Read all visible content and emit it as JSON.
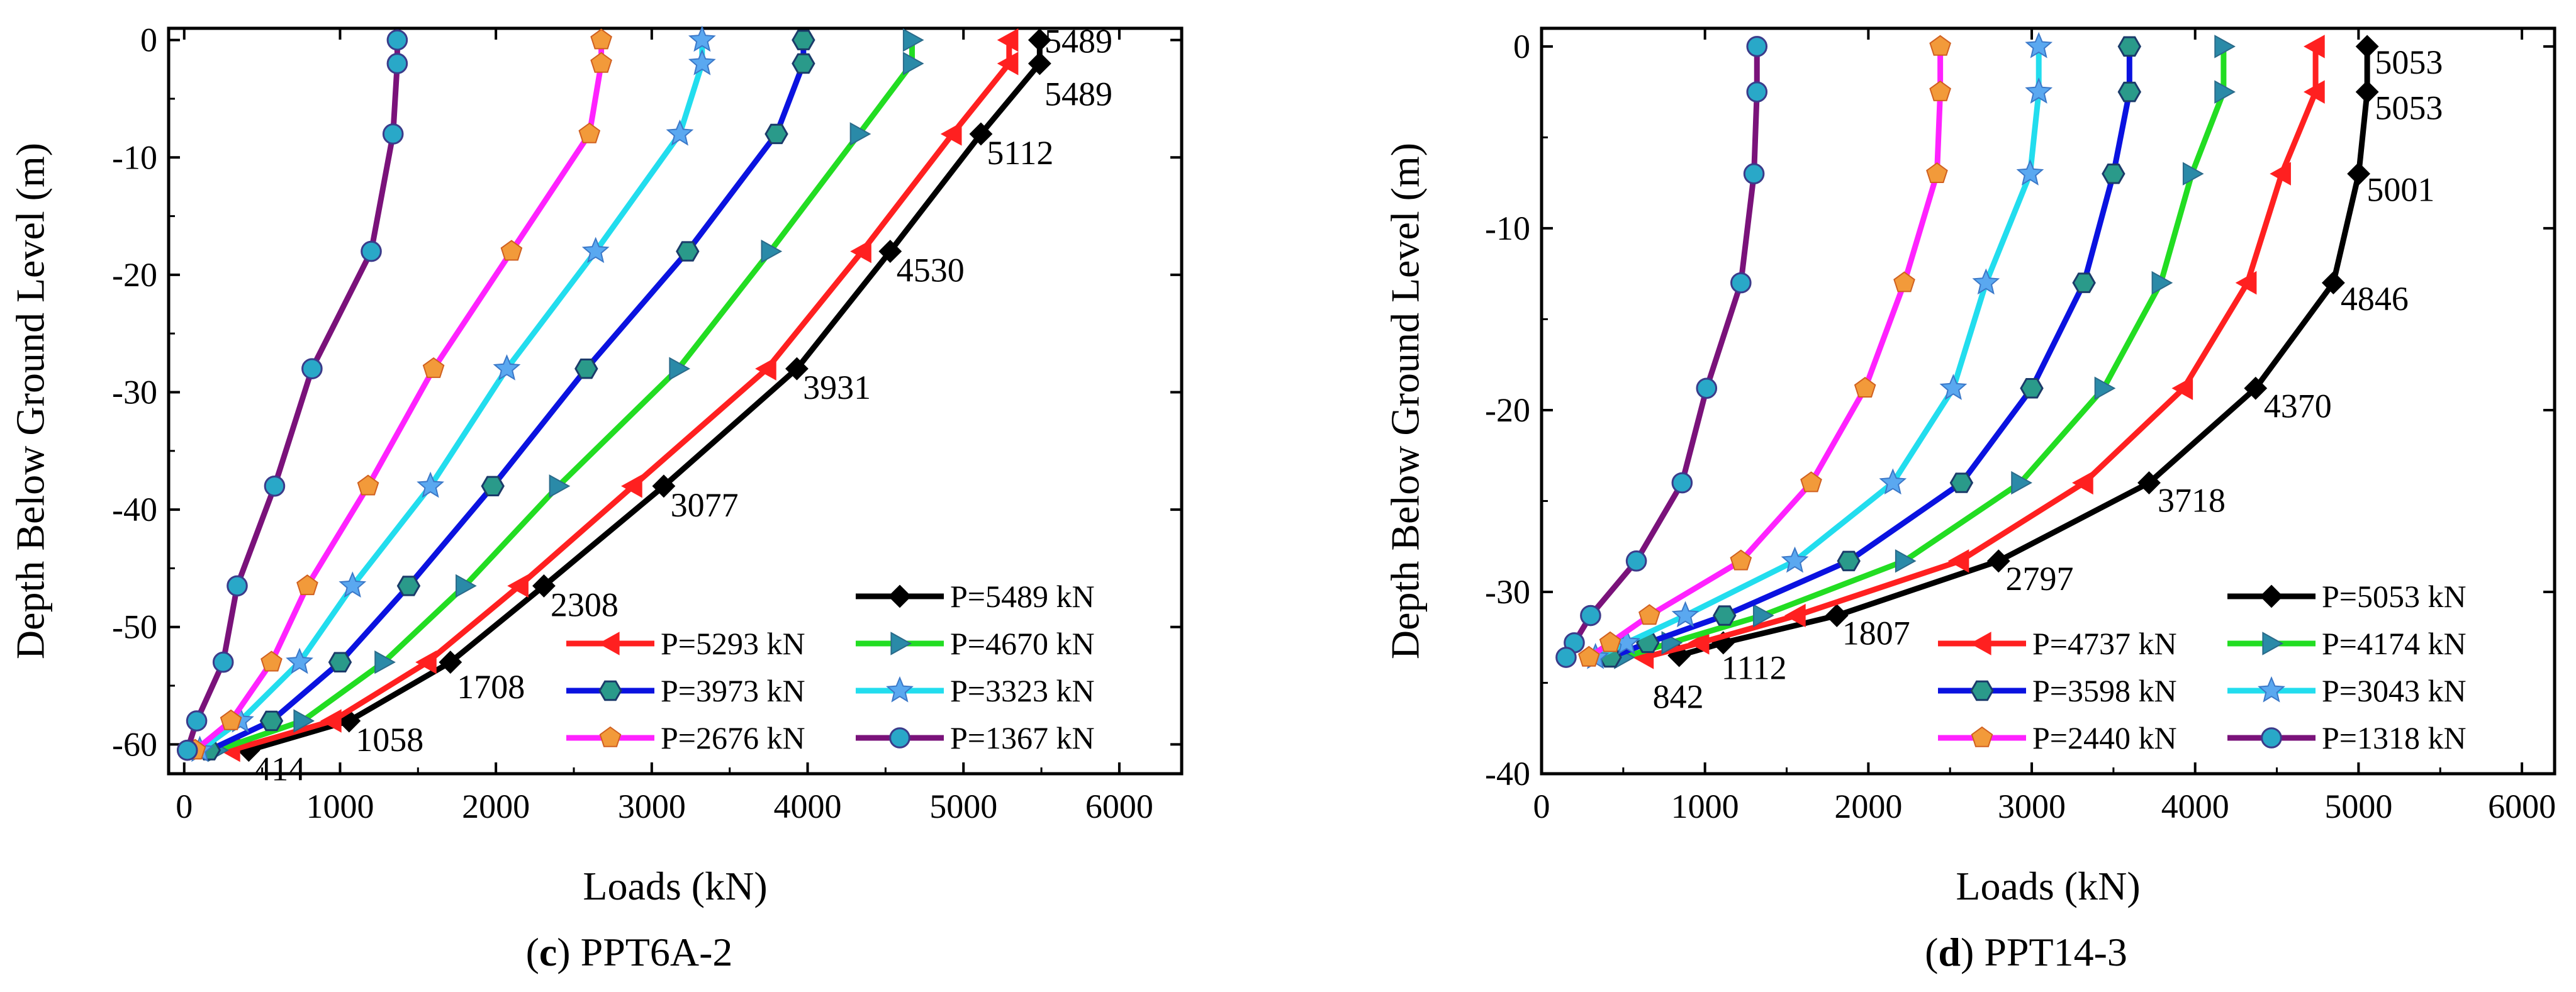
{
  "chart_data": [
    {
      "type": "line",
      "caption_letter": "c",
      "caption_text": "PPT6A-2",
      "xlabel": "Loads (kN)",
      "ylabel": "Depth Below Ground Level (m)",
      "xlim": [
        -100,
        6400
      ],
      "ylim": [
        -62.5,
        1
      ],
      "xticks": [
        0,
        1000,
        2000,
        3000,
        4000,
        5000,
        6000
      ],
      "yticks": [
        0,
        -10,
        -20,
        -30,
        -40,
        -50,
        -60
      ],
      "grid": false,
      "legend_position": "bottom-right",
      "series": [
        {
          "name": "P=5489 kN",
          "color": "#000000",
          "marker": "diamond",
          "points": [
            [
              5489,
              0
            ],
            [
              5489,
              -2
            ],
            [
              5112,
              -8
            ],
            [
              4530,
              -18
            ],
            [
              3931,
              -28
            ],
            [
              3077,
              -38
            ],
            [
              2308,
              -46.5
            ],
            [
              1708,
              -53
            ],
            [
              1058,
              -58
            ],
            [
              414,
              -60.5
            ]
          ]
        },
        {
          "name": "P=5293 kN",
          "color": "#ff2020",
          "marker": "triangle-left",
          "points": [
            [
              5293,
              0
            ],
            [
              5293,
              -2
            ],
            [
              4930,
              -8
            ],
            [
              4350,
              -18
            ],
            [
              3740,
              -28
            ],
            [
              2880,
              -38
            ],
            [
              2150,
              -46.5
            ],
            [
              1560,
              -53
            ],
            [
              950,
              -58
            ],
            [
              300,
              -60.5
            ]
          ]
        },
        {
          "name": "P=4670 kN",
          "color": "#22dd22",
          "marker": "triangle-right",
          "points": [
            [
              4670,
              0
            ],
            [
              4670,
              -2
            ],
            [
              4330,
              -8
            ],
            [
              3760,
              -18
            ],
            [
              3170,
              -28
            ],
            [
              2400,
              -38
            ],
            [
              1800,
              -46.5
            ],
            [
              1280,
              -53
            ],
            [
              760,
              -58
            ],
            [
              210,
              -60.5
            ]
          ]
        },
        {
          "name": "P=3973 kN",
          "color": "#0a12e0",
          "marker": "hexagon",
          "points": [
            [
              3973,
              0
            ],
            [
              3973,
              -2
            ],
            [
              3800,
              -8
            ],
            [
              3230,
              -18
            ],
            [
              2580,
              -28
            ],
            [
              1980,
              -38
            ],
            [
              1440,
              -46.5
            ],
            [
              1000,
              -53
            ],
            [
              560,
              -58
            ],
            [
              160,
              -60.5
            ]
          ]
        },
        {
          "name": "P=3323 kN",
          "color": "#22ddee",
          "marker": "star",
          "points": [
            [
              3323,
              0
            ],
            [
              3323,
              -2
            ],
            [
              3180,
              -8
            ],
            [
              2640,
              -18
            ],
            [
              2070,
              -28
            ],
            [
              1580,
              -38
            ],
            [
              1080,
              -46.5
            ],
            [
              740,
              -53
            ],
            [
              360,
              -58
            ],
            [
              100,
              -60.5
            ]
          ]
        },
        {
          "name": "P=2676 kN",
          "color": "#ff22ff",
          "marker": "pentagon",
          "points": [
            [
              2676,
              0
            ],
            [
              2676,
              -2
            ],
            [
              2600,
              -8
            ],
            [
              2100,
              -18
            ],
            [
              1600,
              -28
            ],
            [
              1180,
              -38
            ],
            [
              790,
              -46.5
            ],
            [
              560,
              -53
            ],
            [
              300,
              -58
            ],
            [
              70,
              -60.5
            ]
          ]
        },
        {
          "name": "P=1367 kN",
          "color": "#7a127a",
          "marker": "circle",
          "points": [
            [
              1367,
              0
            ],
            [
              1367,
              -2
            ],
            [
              1340,
              -8
            ],
            [
              1200,
              -18
            ],
            [
              820,
              -28
            ],
            [
              580,
              -38
            ],
            [
              340,
              -46.5
            ],
            [
              250,
              -53
            ],
            [
              80,
              -58
            ],
            [
              20,
              -60.5
            ]
          ]
        }
      ],
      "annotations": [
        {
          "text": "5489",
          "x": 5520,
          "y": 0
        },
        {
          "text": "5489",
          "x": 5520,
          "y": -4.5
        },
        {
          "text": "5112",
          "x": 5150,
          "y": -9.5
        },
        {
          "text": "4530",
          "x": 4570,
          "y": -19.5
        },
        {
          "text": "3931",
          "x": 3970,
          "y": -29.5
        },
        {
          "text": "3077",
          "x": 3120,
          "y": -39.5
        },
        {
          "text": "2308",
          "x": 2350,
          "y": -48
        },
        {
          "text": "1708",
          "x": 1750,
          "y": -55
        },
        {
          "text": "1058",
          "x": 1100,
          "y": -59.5
        },
        {
          "text": "414",
          "x": 450,
          "y": -62
        }
      ]
    },
    {
      "type": "line",
      "caption_letter": "d",
      "caption_text": "PPT14-3",
      "xlabel": "Loads (kN)",
      "ylabel": "Depth Below Ground Level (m)",
      "xlim": [
        0,
        6200
      ],
      "ylim": [
        -40,
        1
      ],
      "xticks": [
        0,
        1000,
        2000,
        3000,
        4000,
        5000,
        6000
      ],
      "yticks": [
        0,
        -10,
        -20,
        -30,
        -40
      ],
      "grid": false,
      "legend_position": "bottom-right",
      "series": [
        {
          "name": "P=5053 kN",
          "color": "#000000",
          "marker": "diamond",
          "points": [
            [
              5053,
              0
            ],
            [
              5053,
              -2.5
            ],
            [
              5001,
              -7
            ],
            [
              4846,
              -13
            ],
            [
              4370,
              -18.8
            ],
            [
              3718,
              -24
            ],
            [
              2797,
              -28.3
            ],
            [
              1807,
              -31.3
            ],
            [
              1112,
              -32.8
            ],
            [
              842,
              -33.5
            ]
          ]
        },
        {
          "name": "P=4737 kN",
          "color": "#ff2020",
          "marker": "triangle-left",
          "points": [
            [
              4737,
              0
            ],
            [
              4737,
              -2.5
            ],
            [
              4530,
              -7
            ],
            [
              4320,
              -13
            ],
            [
              3930,
              -18.8
            ],
            [
              3320,
              -24
            ],
            [
              2560,
              -28.3
            ],
            [
              1560,
              -31.3
            ],
            [
              970,
              -32.8
            ],
            [
              630,
              -33.6
            ]
          ]
        },
        {
          "name": "P=4174 kN",
          "color": "#22dd22",
          "marker": "triangle-right",
          "points": [
            [
              4174,
              0
            ],
            [
              4174,
              -2.5
            ],
            [
              3980,
              -7
            ],
            [
              3790,
              -13
            ],
            [
              3440,
              -18.8
            ],
            [
              2930,
              -24
            ],
            [
              2220,
              -28.3
            ],
            [
              1350,
              -31.3
            ],
            [
              790,
              -32.8
            ],
            [
              500,
              -33.6
            ]
          ]
        },
        {
          "name": "P=3598 kN",
          "color": "#0a12e0",
          "marker": "hexagon",
          "points": [
            [
              3598,
              0
            ],
            [
              3598,
              -2.5
            ],
            [
              3500,
              -7
            ],
            [
              3320,
              -13
            ],
            [
              3000,
              -18.8
            ],
            [
              2570,
              -24
            ],
            [
              1880,
              -28.3
            ],
            [
              1120,
              -31.3
            ],
            [
              650,
              -32.8
            ],
            [
              420,
              -33.6
            ]
          ]
        },
        {
          "name": "P=3043 kN",
          "color": "#22ddee",
          "marker": "star",
          "points": [
            [
              3043,
              0
            ],
            [
              3043,
              -2.5
            ],
            [
              2990,
              -7
            ],
            [
              2720,
              -13
            ],
            [
              2520,
              -18.8
            ],
            [
              2150,
              -24
            ],
            [
              1550,
              -28.3
            ],
            [
              880,
              -31.3
            ],
            [
              520,
              -32.8
            ],
            [
              330,
              -33.6
            ]
          ]
        },
        {
          "name": "P=2440 kN",
          "color": "#ff22ff",
          "marker": "pentagon",
          "points": [
            [
              2440,
              0
            ],
            [
              2440,
              -2.5
            ],
            [
              2420,
              -7
            ],
            [
              2220,
              -13
            ],
            [
              1980,
              -18.8
            ],
            [
              1650,
              -24
            ],
            [
              1220,
              -28.3
            ],
            [
              660,
              -31.3
            ],
            [
              420,
              -32.8
            ],
            [
              290,
              -33.6
            ]
          ]
        },
        {
          "name": "P=1318 kN",
          "color": "#7a127a",
          "marker": "circle",
          "points": [
            [
              1318,
              0
            ],
            [
              1318,
              -2.5
            ],
            [
              1300,
              -7
            ],
            [
              1220,
              -13
            ],
            [
              1010,
              -18.8
            ],
            [
              860,
              -24
            ],
            [
              580,
              -28.3
            ],
            [
              300,
              -31.3
            ],
            [
              200,
              -32.8
            ],
            [
              150,
              -33.6
            ]
          ]
        }
      ],
      "annotations": [
        {
          "text": "5053",
          "x": 5100,
          "y": -0.8
        },
        {
          "text": "5053",
          "x": 5100,
          "y": -3.3
        },
        {
          "text": "5001",
          "x": 5050,
          "y": -7.8
        },
        {
          "text": "4846",
          "x": 4890,
          "y": -13.8
        },
        {
          "text": "4370",
          "x": 4420,
          "y": -19.7
        },
        {
          "text": "3718",
          "x": 3770,
          "y": -24.9
        },
        {
          "text": "2797",
          "x": 2840,
          "y": -29.2
        },
        {
          "text": "1807",
          "x": 1840,
          "y": -32.2
        },
        {
          "text": "1112",
          "x": 1100,
          "y": -34.1
        },
        {
          "text": "842",
          "x": 680,
          "y": -35.7
        }
      ]
    }
  ]
}
